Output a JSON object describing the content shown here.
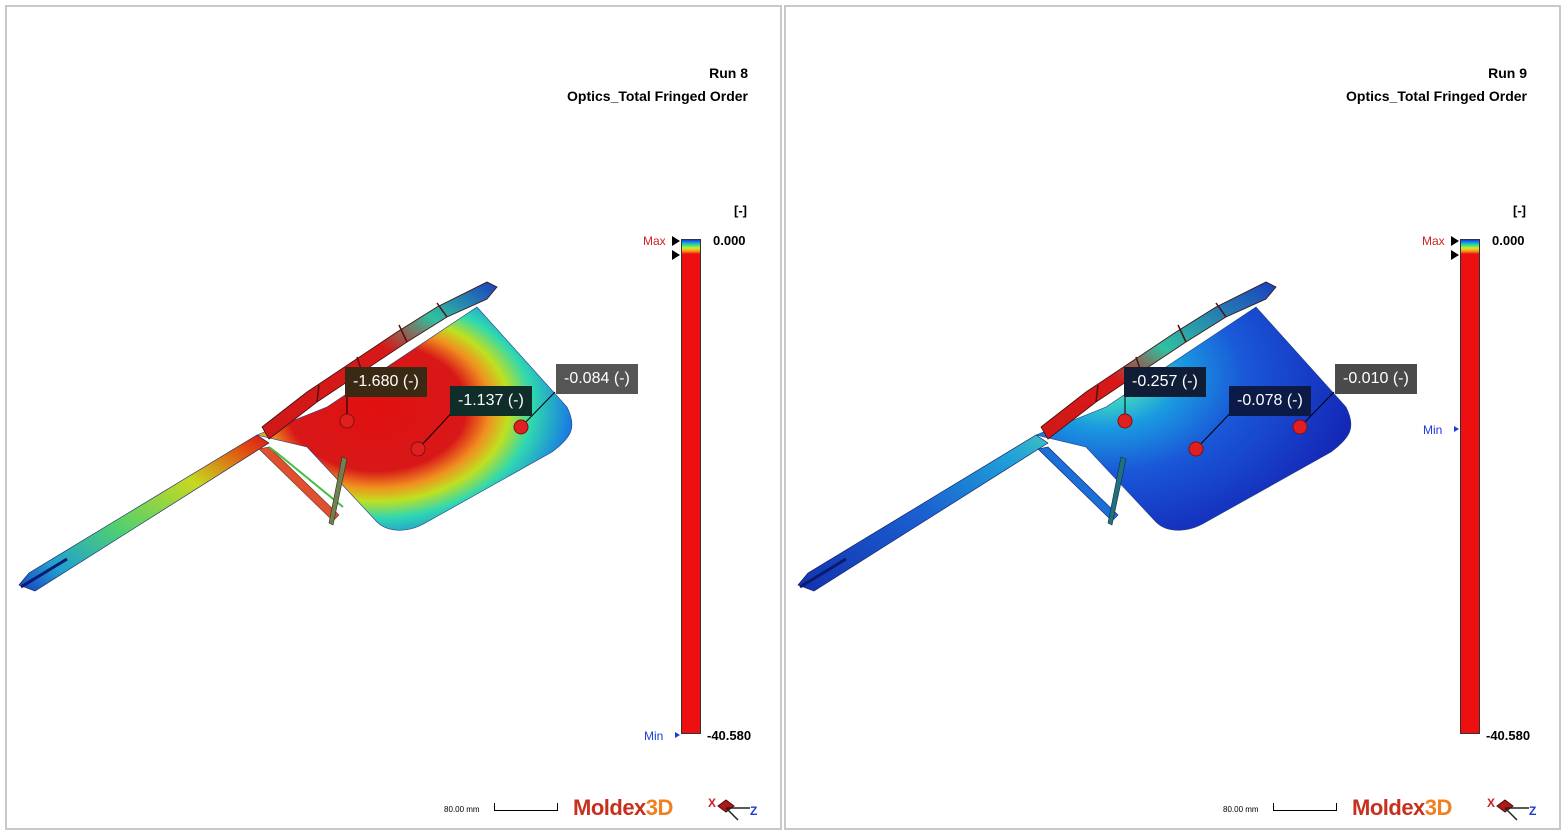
{
  "panels": [
    {
      "run_title": "Run 8",
      "result_name": "Optics_Total Fringed Order",
      "legend": {
        "unit": "[-]",
        "max_label": "Max",
        "min_label": "Min",
        "max_value": "0.000",
        "min_value": "-40.580",
        "min_pointer_at": "bottom"
      },
      "probes": [
        {
          "label": "-1.680 (-)",
          "bg": "#3a2a14"
        },
        {
          "label": "-1.137 (-)",
          "bg": "#0f2e2a"
        },
        {
          "label": "-0.084 (-)",
          "bg": "#555555"
        }
      ],
      "scale": {
        "length": "80.00 mm"
      },
      "brand": {
        "part1": "Moldex",
        "part2": "3D"
      },
      "axes": {
        "x": "X",
        "z": "Z"
      },
      "result_theme": "high-red"
    },
    {
      "run_title": "Run 9",
      "result_name": "Optics_Total Fringed Order",
      "legend": {
        "unit": "[-]",
        "max_label": "Max",
        "min_label": "Min",
        "max_value": "0.000",
        "min_value": "-40.580",
        "min_pointer_at": "mid"
      },
      "probes": [
        {
          "label": "-0.257 (-)",
          "bg": "#0f1e36"
        },
        {
          "label": "-0.078 (-)",
          "bg": "#0c1a48"
        },
        {
          "label": "-0.010 (-)",
          "bg": "#4a4a4a"
        }
      ],
      "scale": {
        "length": "80.00 mm"
      },
      "brand": {
        "part1": "Moldex",
        "part2": "3D"
      },
      "axes": {
        "x": "X",
        "z": "Z"
      },
      "result_theme": "low-blue"
    }
  ],
  "colors": {
    "max_red": "#d02020",
    "min_blue": "#1a3cd8",
    "legend_fill": "#ee1010"
  }
}
